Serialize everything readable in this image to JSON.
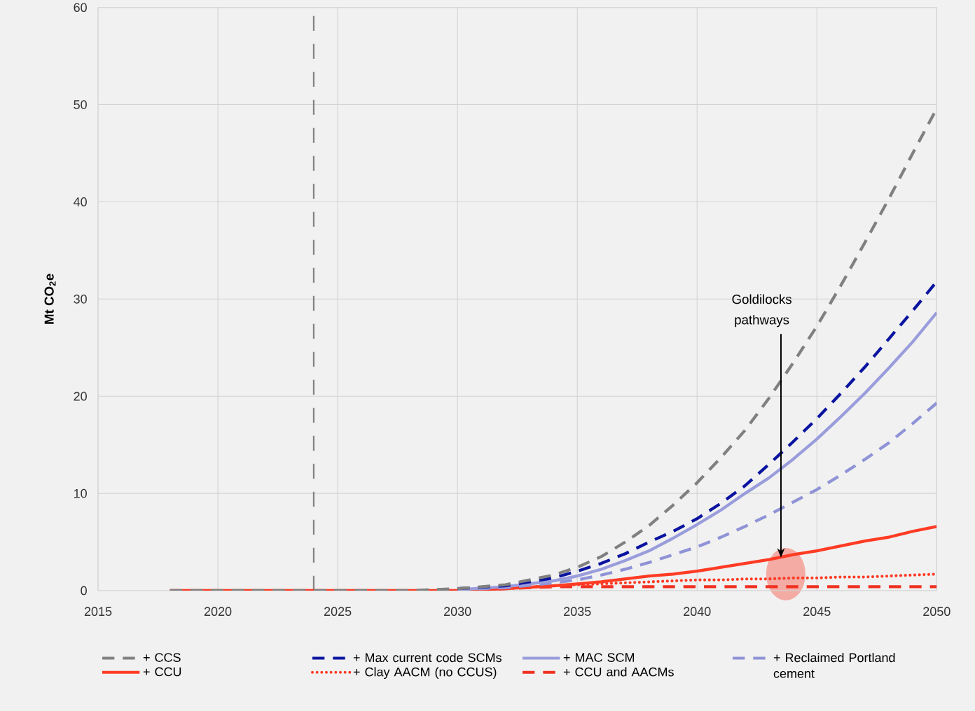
{
  "chart_data": {
    "type": "line",
    "ylabel": "Mt CO$_{2}$e",
    "x": [
      2018,
      2020,
      2022,
      2024,
      2026,
      2028,
      2030,
      2032,
      2034,
      2035,
      2036,
      2037,
      2038,
      2039,
      2040,
      2041,
      2042,
      2043,
      2044,
      2045,
      2046,
      2047,
      2048,
      2049,
      2050
    ],
    "series": [
      {
        "name": "+ CCS",
        "color": "#808080",
        "line_style": "dashed",
        "values": [
          0,
          0,
          0,
          0,
          0,
          0,
          0.2,
          0.6,
          1.6,
          2.4,
          3.5,
          5,
          6.7,
          8.8,
          11.1,
          13.7,
          16.5,
          19.8,
          23.4,
          27.2,
          31.4,
          35.8,
          40.3,
          45,
          49.6
        ]
      },
      {
        "name": "+ Max current code SCMs",
        "color": "#0a14a0",
        "line_style": "dashed",
        "values": [
          null,
          null,
          null,
          null,
          null,
          null,
          0.2,
          0.5,
          1.3,
          2.0,
          2.8,
          3.8,
          5.0,
          6.1,
          7.4,
          9.0,
          10.8,
          13.0,
          15.3,
          17.7,
          20.3,
          23.0,
          25.9,
          28.8,
          31.8
        ]
      },
      {
        "name": "+ MAC SCM",
        "color": "#9a9ddb",
        "line_style": "solid",
        "values": [
          null,
          null,
          null,
          null,
          null,
          null,
          0.1,
          0.4,
          1.0,
          1.5,
          2.2,
          3.1,
          4.1,
          5.4,
          6.8,
          8.3,
          10.0,
          11.6,
          13.5,
          15.6,
          17.9,
          20.3,
          22.9,
          25.6,
          28.6
        ]
      },
      {
        "name": "+ Reclaimed Portland cement",
        "color": "#8f93d6",
        "line_style": "dashed",
        "values": [
          null,
          null,
          null,
          null,
          null,
          null,
          0.1,
          0.3,
          0.8,
          1.1,
          1.6,
          2.2,
          2.9,
          3.7,
          4.5,
          5.5,
          6.6,
          7.8,
          9.1,
          10.4,
          11.9,
          13.5,
          15.2,
          17.2,
          19.3
        ]
      },
      {
        "name": "+ CCU",
        "color": "#ff3b24",
        "line_style": "solid",
        "values": [
          0,
          0,
          0,
          0,
          0,
          0,
          0,
          0.2,
          0.5,
          0.7,
          0.9,
          1.2,
          1.5,
          1.7,
          2.0,
          2.4,
          2.8,
          3.2,
          3.7,
          4.1,
          4.6,
          5.1,
          5.5,
          6.1,
          6.6
        ]
      },
      {
        "name": "+ Clay AACM (no CCUS)",
        "color": "#ff3b24",
        "line_style": "dotted",
        "values": [
          null,
          null,
          null,
          null,
          null,
          null,
          0,
          0.2,
          0.5,
          0.6,
          0.7,
          0.8,
          0.9,
          1.0,
          1.1,
          1.1,
          1.2,
          1.2,
          1.3,
          1.3,
          1.4,
          1.4,
          1.5,
          1.6,
          1.7
        ]
      },
      {
        "name": "+ CCU and AACMs",
        "color": "#f03020",
        "line_style": "dashed",
        "values": [
          null,
          null,
          null,
          null,
          null,
          null,
          0,
          0.2,
          0.4,
          0.4,
          0.4,
          0.4,
          0.4,
          0.4,
          0.4,
          0.4,
          0.4,
          0.4,
          0.4,
          0.4,
          0.4,
          0.4,
          0.4,
          0.4,
          0.4
        ]
      }
    ],
    "annotations": [
      {
        "text": "Goldilocks pathways",
        "x": 2043.5,
        "y": 3.4
      }
    ],
    "ref_lines": [
      {
        "axis": "x",
        "value": 2024,
        "color": "#808080",
        "line_style": "dashed"
      }
    ],
    "xlim": [
      2015,
      2050
    ],
    "ylim": [
      0,
      60
    ],
    "xticks": [
      2015,
      2020,
      2025,
      2030,
      2035,
      2040,
      2045,
      2050
    ],
    "yticks": [
      0,
      10,
      20,
      30,
      40,
      50,
      60
    ],
    "grid": true,
    "legend": "bottom"
  }
}
